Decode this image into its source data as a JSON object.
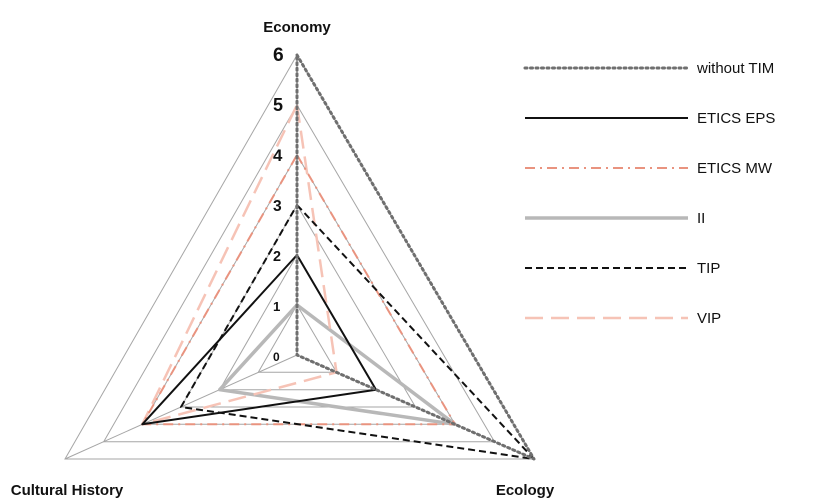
{
  "chart_data": {
    "type": "radar",
    "axes": [
      "Economy",
      "Ecology",
      "Cultural History"
    ],
    "tick_labels": [
      "0",
      "1",
      "2",
      "3",
      "4",
      "5",
      "6"
    ],
    "range": [
      0,
      6
    ],
    "grid": true,
    "legend_position": "right",
    "series": [
      {
        "name": "without TIM",
        "values": [
          6,
          6,
          0
        ],
        "color": "#6f6f6f",
        "style": "dotted"
      },
      {
        "name": "ETICS EPS",
        "values": [
          2,
          2,
          4
        ],
        "color": "#111111",
        "style": "solid"
      },
      {
        "name": "ETICS MW",
        "values": [
          4,
          4,
          4
        ],
        "color": "#e9937f",
        "style": "dashdot"
      },
      {
        "name": "II",
        "values": [
          1,
          4,
          2
        ],
        "color": "#b8b8b8",
        "style": "solid-thick"
      },
      {
        "name": "TIP",
        "values": [
          3,
          6,
          3
        ],
        "color": "#111111",
        "style": "dashed"
      },
      {
        "name": "VIP",
        "values": [
          5,
          1,
          4
        ],
        "color": "#f6c3b6",
        "style": "longdash"
      }
    ]
  }
}
